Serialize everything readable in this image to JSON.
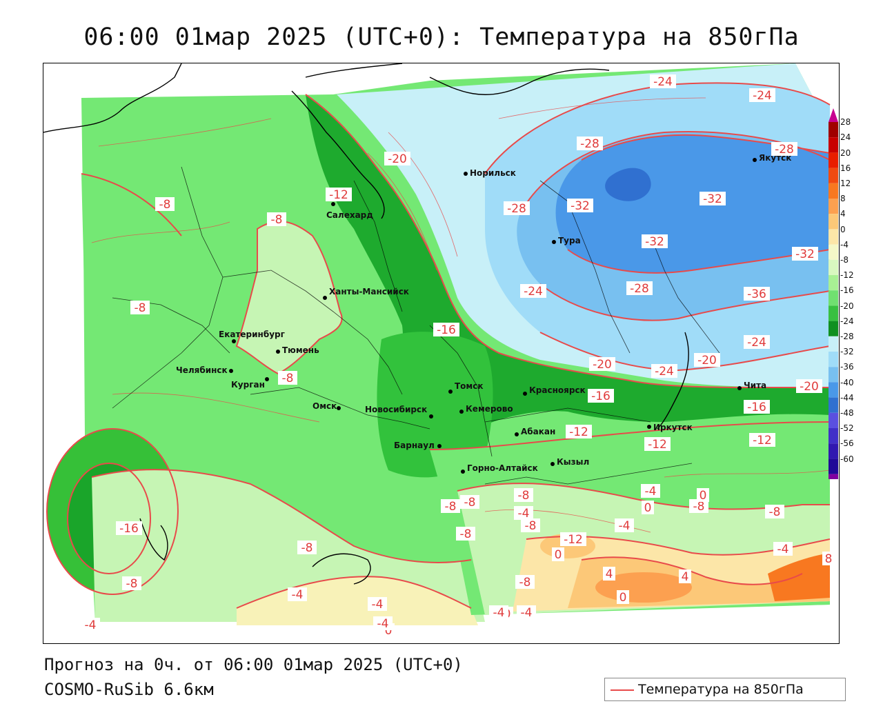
{
  "title": "06:00 01мар 2025 (UTC+0): Температура на 850гПа",
  "footer": {
    "forecast": "Прогноз на 0ч. от 06:00 01мар 2025 (UTC+0)",
    "model": "COSMO-RuSib 6.6км"
  },
  "legend": {
    "label": "Температура на 850гПа",
    "line_color": "#e84a4a"
  },
  "colorbar": {
    "ticks": [
      "28",
      "24",
      "20",
      "16",
      "12",
      "8",
      "4",
      "0",
      "-4",
      "-8",
      "-12",
      "-16",
      "-20",
      "-24",
      "-28",
      "-32",
      "-36",
      "-40",
      "-44",
      "-48",
      "-52",
      "-56",
      "-60"
    ],
    "colors": [
      "#a00000",
      "#c80000",
      "#e81e00",
      "#f04a10",
      "#f87820",
      "#fca050",
      "#fcc878",
      "#fce6a8",
      "#f4f8c8",
      "#d8f8c0",
      "#a8f094",
      "#70e070",
      "#38c040",
      "#109020",
      "#c8f0f8",
      "#a0dcf8",
      "#78c0f0",
      "#4a98e8",
      "#3070d0",
      "#5a50e0",
      "#4030c8",
      "#3018b0",
      "#200898",
      "#8000a0"
    ]
  },
  "cities": [
    {
      "name": "Салехард"
    },
    {
      "name": "Норильск"
    },
    {
      "name": "Тура"
    },
    {
      "name": "Якутск"
    },
    {
      "name": "Ханты-Мансийск"
    },
    {
      "name": "Екатеринбург"
    },
    {
      "name": "Тюмень"
    },
    {
      "name": "Челябинск"
    },
    {
      "name": "Курган"
    },
    {
      "name": "Омск"
    },
    {
      "name": "Новосибирск"
    },
    {
      "name": "Томск"
    },
    {
      "name": "Кемерово"
    },
    {
      "name": "Красноярск"
    },
    {
      "name": "Барнаул"
    },
    {
      "name": "Абакан"
    },
    {
      "name": "Горно-Алтайск"
    },
    {
      "name": "Кызыл"
    },
    {
      "name": "Иркутск"
    },
    {
      "name": "Чита"
    }
  ],
  "isotherm_labels": [
    "-24",
    "-24",
    "-28",
    "-28",
    "-20",
    "-12",
    "-8",
    "-8",
    "-28",
    "-32",
    "-32",
    "-32",
    "-32",
    "-8",
    "-28",
    "-24",
    "-36",
    "-16",
    "-8",
    "-20",
    "-24",
    "-20",
    "-24",
    "-20",
    "-16",
    "-16",
    "-12",
    "-12",
    "-12",
    "-16",
    "-8",
    "-8",
    "-4",
    "-8",
    "-4",
    "-8",
    "-8",
    "-12",
    "-4",
    "0",
    "-8",
    "0",
    "-4",
    "-8",
    "4",
    "0",
    "4",
    "-4",
    "8",
    "-8",
    "-4",
    "0",
    "0",
    "-4",
    "-4",
    "-4",
    "-4",
    "0",
    "-8",
    "-8"
  ]
}
